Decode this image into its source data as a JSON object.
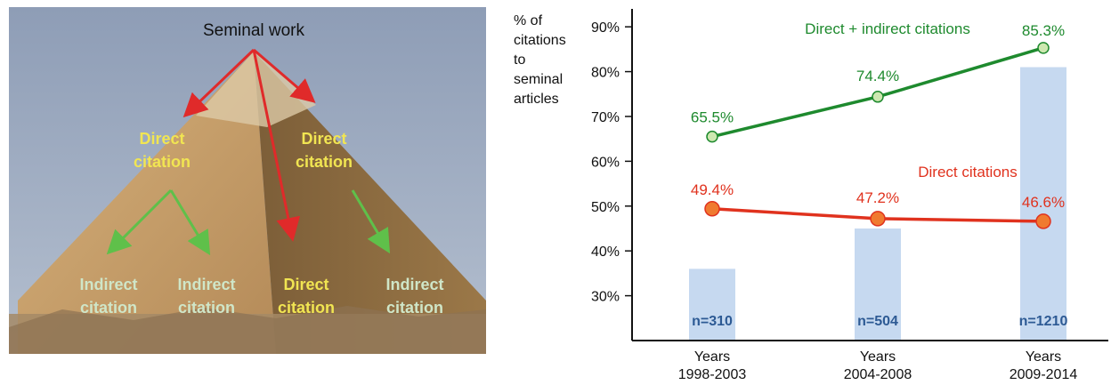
{
  "diagram": {
    "top_label": "Seminal work",
    "direct_left": [
      "Direct",
      "citation"
    ],
    "direct_right": [
      "Direct",
      "citation"
    ],
    "bottom_labels": [
      {
        "line1": "Indirect",
        "line2": "citation",
        "kind": "indirect"
      },
      {
        "line1": "Indirect",
        "line2": "citation",
        "kind": "indirect"
      },
      {
        "line1": "Direct",
        "line2": "citation",
        "kind": "direct"
      },
      {
        "line1": "Indirect",
        "line2": "citation",
        "kind": "indirect"
      }
    ],
    "colors": {
      "sky": "#9ba9bf",
      "pyramid_light": "#c9a571",
      "pyramid_shadow": "#8a6a3f",
      "direct_text": "#f1e552",
      "indirect_text": "#cfe6c8",
      "red_arrow": "#e02a2a",
      "green_arrow": "#5fc04a"
    }
  },
  "chart_data": {
    "type": "bar+line",
    "ylabel": "% of citations to seminal articles",
    "ylabel_lines": [
      "% of",
      "citations",
      "to",
      "seminal",
      "articles"
    ],
    "ytick_labels": [
      "90%",
      "80%",
      "70%",
      "60%",
      "50%",
      "40%",
      "30%"
    ],
    "yticks": [
      90,
      80,
      70,
      60,
      50,
      40,
      30
    ],
    "ylim": [
      20,
      94
    ],
    "categories": [
      {
        "line1": "Years",
        "line2": "1998-2003"
      },
      {
        "line1": "Years",
        "line2": "2004-2008"
      },
      {
        "line1": "Years",
        "line2": "2009-2014"
      }
    ],
    "bars": {
      "axis_values": [
        36,
        45,
        81
      ],
      "labels": [
        "n=310",
        "n=504",
        "n=1210"
      ],
      "n": [
        310,
        504,
        1210
      ],
      "color": "#c6d9f0",
      "label_color": "#2d5a94"
    },
    "series": [
      {
        "name": "Direct + indirect citations",
        "values": [
          65.5,
          74.4,
          85.3
        ],
        "labels": [
          "65.5%",
          "74.4%",
          "85.3%"
        ],
        "color": "#1e8a2e",
        "marker_fill": "#cde8b0"
      },
      {
        "name": "Direct citations",
        "values": [
          49.4,
          47.2,
          46.6
        ],
        "labels": [
          "49.4%",
          "47.2%",
          "46.6%"
        ],
        "color": "#e0321e",
        "marker_fill": "#f07a30"
      }
    ],
    "grid": false,
    "legend": "inline"
  }
}
